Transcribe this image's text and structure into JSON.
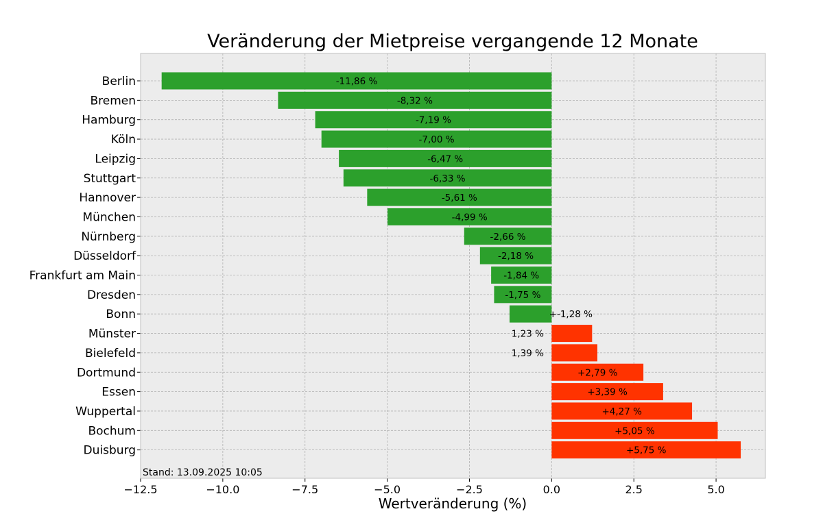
{
  "chart_data": {
    "type": "bar",
    "orientation": "horizontal",
    "title": "Veränderung der Mietpreise vergangende 12 Monate",
    "xlabel": "Wertveränderung (%)",
    "ylabel": "",
    "xlim": [
      -12.5,
      6.5
    ],
    "xticks": [
      -12.5,
      -10.0,
      -7.5,
      -5.0,
      -2.5,
      0.0,
      2.5,
      5.0
    ],
    "xtick_labels": [
      "−12.5",
      "−10.0",
      "−7.5",
      "−5.0",
      "−2.5",
      "0.0",
      "2.5",
      "5.0"
    ],
    "grid": true,
    "categories": [
      "Berlin",
      "Bremen",
      "Hamburg",
      "Köln",
      "Leipzig",
      "Stuttgart",
      "Hannover",
      "München",
      "Nürnberg",
      "Düsseldorf",
      "Frankfurt am Main",
      "Dresden",
      "Bonn",
      "Münster",
      "Bielefeld",
      "Dortmund",
      "Essen",
      "Wuppertal",
      "Bochum",
      "Duisburg"
    ],
    "values": [
      -11.86,
      -8.32,
      -7.19,
      -7.0,
      -6.47,
      -6.33,
      -5.61,
      -4.99,
      -2.66,
      -2.18,
      -1.84,
      -1.75,
      -1.28,
      1.23,
      1.39,
      2.79,
      3.39,
      4.27,
      5.05,
      5.75
    ],
    "data_labels": [
      "-11,86 %",
      "-8,32 %",
      "-7,19 %",
      "-7,00 %",
      "-6,47 %",
      "-6,33 %",
      "-5,61 %",
      "-4,99 %",
      "-2,66 %",
      "-2,18 %",
      "-1,84 %",
      "-1,75 %",
      "+-1,28 %",
      "1,23 %",
      "1,39 %",
      "+2,79 %",
      "+3,39 %",
      "+4,27 %",
      "+5,05 %",
      "+5,75 %"
    ],
    "colors": {
      "negative": "#2ca02c",
      "positive": "#ff3300",
      "plot_background": "#ececec"
    }
  },
  "footnote": "Stand: 13.09.2025 10:05"
}
